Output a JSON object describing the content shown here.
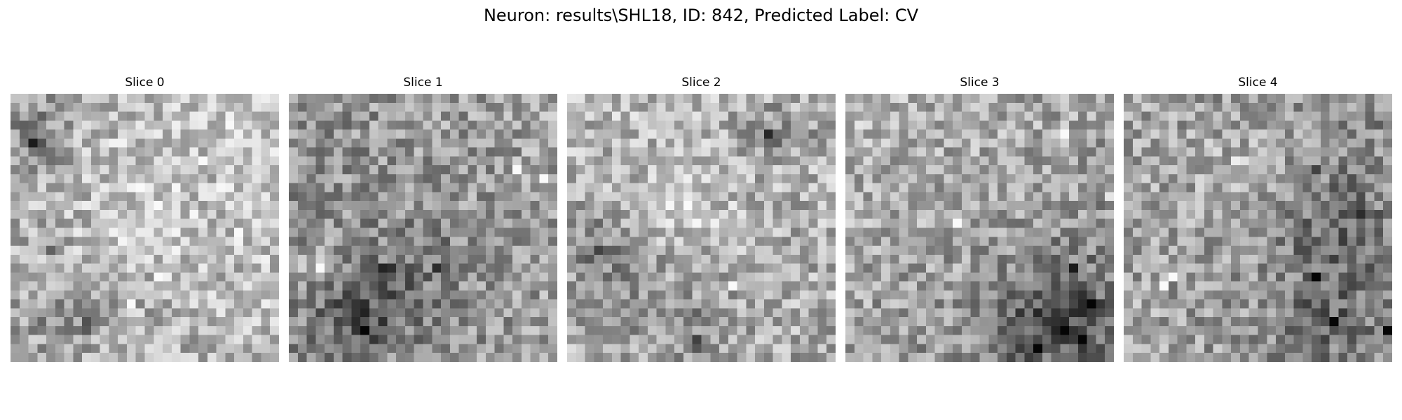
{
  "figure": {
    "title": "Neuron: results\\SHL18, ID: 842, Predicted Label: CV"
  },
  "chart_data": [
    {
      "type": "heatmap",
      "title": "Slice 0",
      "colormap": "gray",
      "grid": false,
      "axes_visible": false,
      "resolution": "30x30",
      "profile": "light",
      "dark_spots": [
        [
          1,
          4
        ],
        [
          2,
          5
        ],
        [
          4,
          17
        ],
        [
          8,
          25
        ]
      ],
      "bright_spots": [
        [
          13,
          23
        ],
        [
          16,
          20
        ],
        [
          21,
          7
        ],
        [
          25,
          15
        ]
      ]
    },
    {
      "type": "heatmap",
      "title": "Slice 1",
      "colormap": "gray",
      "grid": false,
      "axes_visible": false,
      "resolution": "30x30",
      "profile": "dark-lower-left",
      "dark_spots": [
        [
          7,
          25
        ],
        [
          8,
          26
        ],
        [
          9,
          27
        ],
        [
          10,
          19
        ],
        [
          16,
          19
        ]
      ],
      "bright_spots": [
        [
          3,
          19
        ],
        [
          25,
          8
        ],
        [
          28,
          9
        ]
      ]
    },
    {
      "type": "heatmap",
      "title": "Slice 2",
      "colormap": "gray",
      "grid": false,
      "axes_visible": false,
      "resolution": "30x30",
      "profile": "light-with-dark-corners",
      "dark_spots": [
        [
          3,
          17
        ],
        [
          22,
          4
        ],
        [
          23,
          5
        ],
        [
          14,
          27
        ]
      ],
      "bright_spots": [
        [
          13,
          12
        ],
        [
          15,
          9
        ],
        [
          18,
          21
        ],
        [
          28,
          12
        ]
      ]
    },
    {
      "type": "heatmap",
      "title": "Slice 3",
      "colormap": "gray",
      "grid": false,
      "axes_visible": false,
      "resolution": "30x30",
      "profile": "dark-lower-right",
      "dark_spots": [
        [
          21,
          28
        ],
        [
          24,
          26
        ],
        [
          25,
          19
        ],
        [
          27,
          23
        ],
        [
          26,
          27
        ]
      ],
      "bright_spots": [
        [
          7,
          1
        ],
        [
          24,
          4
        ],
        [
          29,
          11
        ],
        [
          12,
          14
        ]
      ]
    },
    {
      "type": "heatmap",
      "title": "Slice 4",
      "colormap": "gray",
      "grid": false,
      "axes_visible": false,
      "resolution": "30x30",
      "profile": "dark-right",
      "dark_spots": [
        [
          21,
          8
        ],
        [
          21,
          20
        ],
        [
          23,
          25
        ],
        [
          26,
          13
        ],
        [
          29,
          26
        ]
      ],
      "bright_spots": [
        [
          12,
          7
        ],
        [
          13,
          7
        ],
        [
          5,
          20
        ],
        [
          4,
          21
        ]
      ]
    }
  ]
}
